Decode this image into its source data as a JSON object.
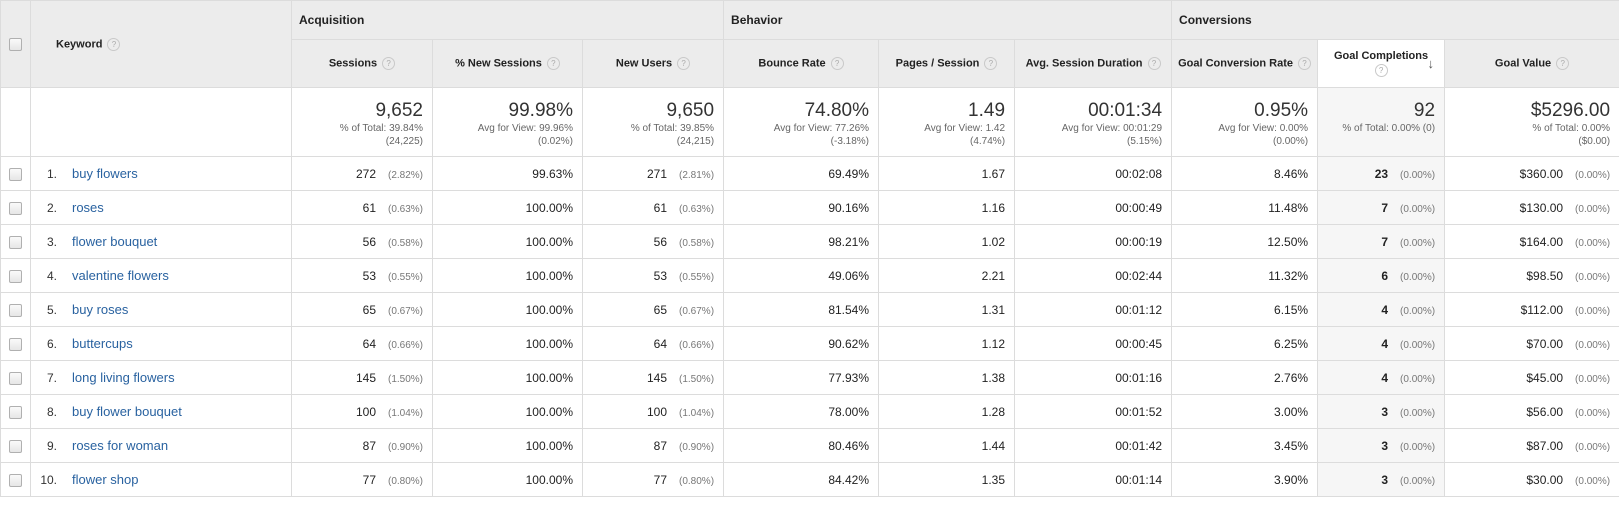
{
  "groups": {
    "acquisition": "Acquisition",
    "behavior": "Behavior",
    "conversions": "Conversions"
  },
  "columns": {
    "keyword": "Keyword",
    "sessions": "Sessions",
    "new_sessions_pct": "% New Sessions",
    "new_users": "New Users",
    "bounce_rate": "Bounce Rate",
    "pages_session": "Pages / Session",
    "avg_duration": "Avg. Session Duration",
    "goal_conv_rate": "Goal Conversion Rate",
    "goal_completions": "Goal Completions",
    "goal_value": "Goal Value"
  },
  "help_glyph": "?",
  "sort_arrow": "↓",
  "totals": {
    "sessions": {
      "main": "9,652",
      "sub1": "% of Total: 39.84%",
      "sub2": "(24,225)"
    },
    "new_sessions_pct": {
      "main": "99.98%",
      "sub1": "Avg for View: 99.96%",
      "sub2": "(0.02%)"
    },
    "new_users": {
      "main": "9,650",
      "sub1": "% of Total: 39.85%",
      "sub2": "(24,215)"
    },
    "bounce_rate": {
      "main": "74.80%",
      "sub1": "Avg for View: 77.26%",
      "sub2": "(-3.18%)"
    },
    "pages_session": {
      "main": "1.49",
      "sub1": "Avg for View: 1.42",
      "sub2": "(4.74%)"
    },
    "avg_duration": {
      "main": "00:01:34",
      "sub1": "Avg for View: 00:01:29",
      "sub2": "(5.15%)"
    },
    "goal_conv_rate": {
      "main": "0.95%",
      "sub1": "Avg for View: 0.00%",
      "sub2": "(0.00%)"
    },
    "goal_completions": {
      "main": "92",
      "sub1": "% of Total: 0.00% (0)",
      "sub2": ""
    },
    "goal_value": {
      "main": "$5296.00",
      "sub1": "% of Total: 0.00%",
      "sub2": "($0.00)"
    }
  },
  "rows": [
    {
      "rank": "1.",
      "keyword": "buy flowers",
      "sessions": "272",
      "sessions_pct": "(2.82%)",
      "new_sessions": "99.63%",
      "new_users": "271",
      "new_users_pct": "(2.81%)",
      "bounce": "69.49%",
      "pages": "1.67",
      "duration": "00:02:08",
      "conv_rate": "8.46%",
      "completions": "23",
      "completions_pct": "(0.00%)",
      "value": "$360.00",
      "value_pct": "(0.00%)"
    },
    {
      "rank": "2.",
      "keyword": "roses",
      "sessions": "61",
      "sessions_pct": "(0.63%)",
      "new_sessions": "100.00%",
      "new_users": "61",
      "new_users_pct": "(0.63%)",
      "bounce": "90.16%",
      "pages": "1.16",
      "duration": "00:00:49",
      "conv_rate": "11.48%",
      "completions": "7",
      "completions_pct": "(0.00%)",
      "value": "$130.00",
      "value_pct": "(0.00%)"
    },
    {
      "rank": "3.",
      "keyword": "flower bouquet",
      "sessions": "56",
      "sessions_pct": "(0.58%)",
      "new_sessions": "100.00%",
      "new_users": "56",
      "new_users_pct": "(0.58%)",
      "bounce": "98.21%",
      "pages": "1.02",
      "duration": "00:00:19",
      "conv_rate": "12.50%",
      "completions": "7",
      "completions_pct": "(0.00%)",
      "value": "$164.00",
      "value_pct": "(0.00%)"
    },
    {
      "rank": "4.",
      "keyword": "valentine flowers",
      "sessions": "53",
      "sessions_pct": "(0.55%)",
      "new_sessions": "100.00%",
      "new_users": "53",
      "new_users_pct": "(0.55%)",
      "bounce": "49.06%",
      "pages": "2.21",
      "duration": "00:02:44",
      "conv_rate": "11.32%",
      "completions": "6",
      "completions_pct": "(0.00%)",
      "value": "$98.50",
      "value_pct": "(0.00%)"
    },
    {
      "rank": "5.",
      "keyword": "buy roses",
      "sessions": "65",
      "sessions_pct": "(0.67%)",
      "new_sessions": "100.00%",
      "new_users": "65",
      "new_users_pct": "(0.67%)",
      "bounce": "81.54%",
      "pages": "1.31",
      "duration": "00:01:12",
      "conv_rate": "6.15%",
      "completions": "4",
      "completions_pct": "(0.00%)",
      "value": "$112.00",
      "value_pct": "(0.00%)"
    },
    {
      "rank": "6.",
      "keyword": "buttercups",
      "sessions": "64",
      "sessions_pct": "(0.66%)",
      "new_sessions": "100.00%",
      "new_users": "64",
      "new_users_pct": "(0.66%)",
      "bounce": "90.62%",
      "pages": "1.12",
      "duration": "00:00:45",
      "conv_rate": "6.25%",
      "completions": "4",
      "completions_pct": "(0.00%)",
      "value": "$70.00",
      "value_pct": "(0.00%)"
    },
    {
      "rank": "7.",
      "keyword": "long living flowers",
      "sessions": "145",
      "sessions_pct": "(1.50%)",
      "new_sessions": "100.00%",
      "new_users": "145",
      "new_users_pct": "(1.50%)",
      "bounce": "77.93%",
      "pages": "1.38",
      "duration": "00:01:16",
      "conv_rate": "2.76%",
      "completions": "4",
      "completions_pct": "(0.00%)",
      "value": "$45.00",
      "value_pct": "(0.00%)"
    },
    {
      "rank": "8.",
      "keyword": "buy flower bouquet",
      "sessions": "100",
      "sessions_pct": "(1.04%)",
      "new_sessions": "100.00%",
      "new_users": "100",
      "new_users_pct": "(1.04%)",
      "bounce": "78.00%",
      "pages": "1.28",
      "duration": "00:01:52",
      "conv_rate": "3.00%",
      "completions": "3",
      "completions_pct": "(0.00%)",
      "value": "$56.00",
      "value_pct": "(0.00%)"
    },
    {
      "rank": "9.",
      "keyword": "roses for woman",
      "sessions": "87",
      "sessions_pct": "(0.90%)",
      "new_sessions": "100.00%",
      "new_users": "87",
      "new_users_pct": "(0.90%)",
      "bounce": "80.46%",
      "pages": "1.44",
      "duration": "00:01:42",
      "conv_rate": "3.45%",
      "completions": "3",
      "completions_pct": "(0.00%)",
      "value": "$87.00",
      "value_pct": "(0.00%)"
    },
    {
      "rank": "10.",
      "keyword": "flower shop",
      "sessions": "77",
      "sessions_pct": "(0.80%)",
      "new_sessions": "100.00%",
      "new_users": "77",
      "new_users_pct": "(0.80%)",
      "bounce": "84.42%",
      "pages": "1.35",
      "duration": "00:01:14",
      "conv_rate": "3.90%",
      "completions": "3",
      "completions_pct": "(0.00%)",
      "value": "$30.00",
      "value_pct": "(0.00%)"
    }
  ]
}
